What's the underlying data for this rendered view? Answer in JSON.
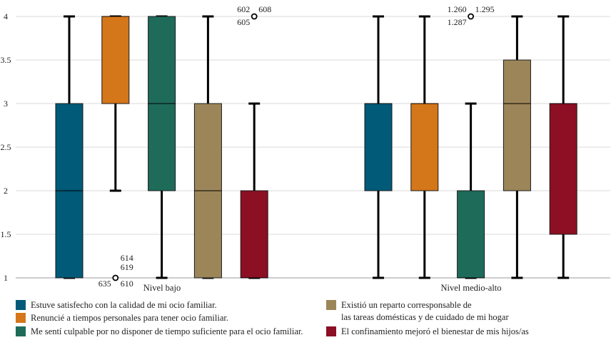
{
  "chart_data": {
    "type": "boxplot",
    "title": "",
    "xlabel": "",
    "ylabel": "",
    "ylim": [
      1,
      4
    ],
    "yticks": [
      "1",
      "1.5",
      "2",
      "2.5",
      "3",
      "3.5",
      "4"
    ],
    "grid": true,
    "groups": [
      "Nivel bajo",
      "Nivel medio-alto"
    ],
    "series": [
      {
        "name": "Estuve satisfecho con la calidad de mi ocio familiar.",
        "color": "#005a78",
        "boxes": [
          {
            "min": 1,
            "q1": 1,
            "median": 2,
            "q3": 3,
            "max": 4
          },
          {
            "min": 1,
            "q1": 2,
            "median": 3,
            "q3": 3,
            "max": 4
          }
        ]
      },
      {
        "name": "Renuncié a tiempos personales para tener ocio familiar.",
        "color": "#d4761a",
        "boxes": [
          {
            "min": 2,
            "q1": 3,
            "median": 4,
            "q3": 4,
            "max": 4
          },
          {
            "min": 1,
            "q1": 2,
            "median": 3,
            "q3": 3,
            "max": 4
          }
        ]
      },
      {
        "name": "Me sentí culpable por no disponer de tiempo suficiente para el ocio familiar.",
        "color": "#1e6b5a",
        "boxes": [
          {
            "min": 1,
            "q1": 2,
            "median": 3,
            "q3": 4,
            "max": 4
          },
          {
            "min": 1,
            "q1": 1,
            "median": 1,
            "q3": 2,
            "max": 3
          }
        ]
      },
      {
        "name_lines": [
          "Existió un reparto corresponsable de",
          "las tareas domésticas y de cuidado de mi hogar"
        ],
        "color": "#9c8659",
        "boxes": [
          {
            "min": 1,
            "q1": 1,
            "median": 2,
            "q3": 3,
            "max": 4
          },
          {
            "min": 1,
            "q1": 2,
            "median": 3,
            "q3": 3.5,
            "max": 4
          }
        ]
      },
      {
        "name": "El confinamiento mejoró el bienestar de mis hijos/as",
        "color": "#8c0f23",
        "boxes": [
          {
            "min": 1,
            "q1": 1,
            "median": 1,
            "q3": 2,
            "max": 3
          },
          {
            "min": 1,
            "q1": 1.5,
            "median": 3,
            "q3": 3,
            "max": 4
          }
        ]
      }
    ],
    "outliers": [
      {
        "group": 0,
        "series": 1,
        "value": 1,
        "labels": [
          "614",
          "619",
          "610",
          "635"
        ]
      },
      {
        "group": 0,
        "series": 4,
        "value": 4,
        "labels": [
          "602",
          "608",
          "605"
        ]
      },
      {
        "group": 1,
        "series": 2,
        "value": 4,
        "labels": [
          "1.260",
          "1.295",
          "1.287"
        ]
      }
    ]
  }
}
